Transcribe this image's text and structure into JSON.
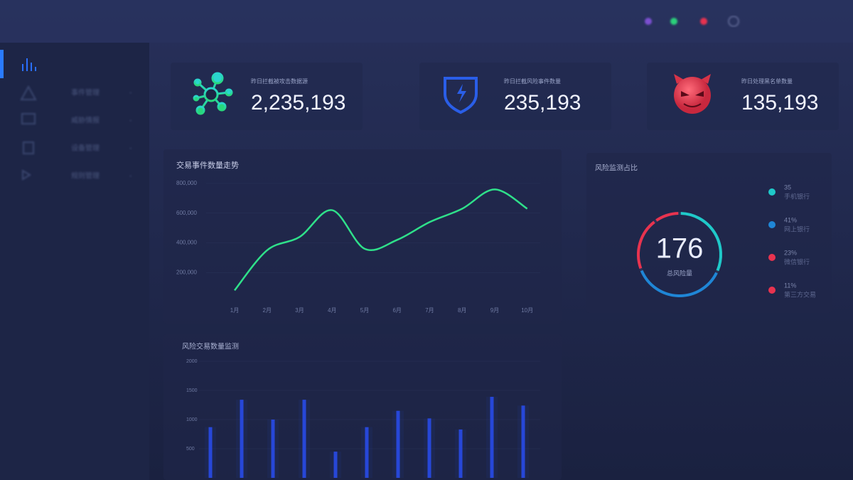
{
  "sidebar": {
    "items": [
      "事件管理",
      "威胁情报",
      "设备管理",
      "规则管理"
    ]
  },
  "stats": [
    {
      "label": "昨日拦截被攻击数据源",
      "value": "2,235,193"
    },
    {
      "label": "昨日拦截风险事件数量",
      "value": "235,193"
    },
    {
      "label": "昨日处理黑名单数量",
      "value": "135,193"
    }
  ],
  "line_chart": {
    "type": "line",
    "title": "交易事件数量走势",
    "categories": [
      "1月",
      "2月",
      "3月",
      "4月",
      "5月",
      "6月",
      "7月",
      "8月",
      "9月",
      "10月"
    ],
    "values": [
      80000,
      350000,
      440000,
      620000,
      360000,
      420000,
      540000,
      630000,
      760000,
      630000
    ],
    "color": "#2fe08a",
    "ylim": [
      0,
      800000
    ],
    "yticks": [
      {
        "value": 200000,
        "label": "200,000"
      },
      {
        "value": 400000,
        "label": "400,000"
      },
      {
        "value": 600000,
        "label": "600,000"
      },
      {
        "value": 800000,
        "label": "800,000"
      }
    ]
  },
  "donut": {
    "type": "pie",
    "title": "风险监测占比",
    "total": 176,
    "total_label": "总风险量",
    "categories": [
      "手机银行",
      "网上银行",
      "微信银行",
      "第三方交易"
    ],
    "values": [
      35,
      41,
      23,
      11
    ],
    "value_labels": [
      "35",
      "41%",
      "23%",
      "11%"
    ],
    "colors": [
      "#1fc9c9",
      "#1f86d6",
      "#e8334f",
      "#e8334f"
    ]
  },
  "bar_chart": {
    "type": "bar",
    "title": "风险交易数量监测",
    "values": [
      870,
      1340,
      1000,
      1340,
      450,
      870,
      1150,
      1020,
      830,
      1390,
      1240
    ],
    "color": "#2747d8",
    "ylim": [
      0,
      2000
    ],
    "yticks": [
      500,
      1000,
      1500,
      2000
    ]
  }
}
